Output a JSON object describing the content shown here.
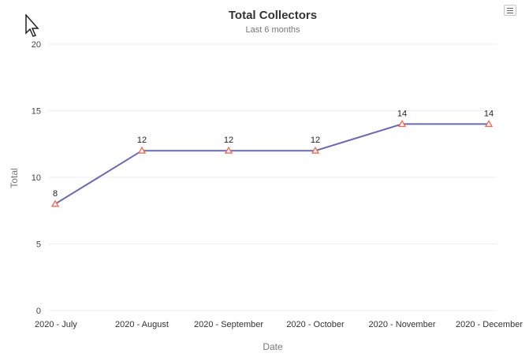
{
  "chart_data": {
    "type": "line",
    "title": "Total Collectors",
    "subtitle": "Last 6 months",
    "xlabel": "Date",
    "ylabel": "Total",
    "categories": [
      "2020 - July",
      "2020 - August",
      "2020 - September",
      "2020 - October",
      "2020 - November",
      "2020 - December"
    ],
    "series": [
      {
        "values": [
          8,
          12,
          12,
          12,
          14,
          14
        ]
      }
    ],
    "ylim": [
      0,
      20
    ],
    "yticks": [
      "0",
      "5",
      "10",
      "15",
      "20"
    ],
    "data_labels": [
      "8",
      "12",
      "12",
      "12",
      "14",
      "14"
    ],
    "grid": true,
    "line_color": "#6a6ab2",
    "marker_color": "#ff6347",
    "marker": "triangle"
  },
  "icons": {
    "menu": "hamburger-menu-icon",
    "cursor": "mouse-pointer-icon"
  }
}
